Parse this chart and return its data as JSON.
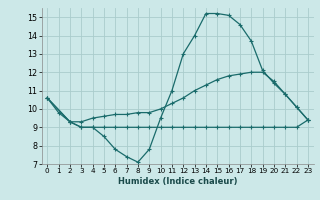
{
  "title": "",
  "xlabel": "Humidex (Indice chaleur)",
  "background_color": "#cce8e8",
  "grid_color": "#aacccc",
  "line_color": "#1a6b6b",
  "xlim": [
    -0.5,
    23.5
  ],
  "ylim": [
    7,
    15.5
  ],
  "xticks": [
    0,
    1,
    2,
    3,
    4,
    5,
    6,
    7,
    8,
    9,
    10,
    11,
    12,
    13,
    14,
    15,
    16,
    17,
    18,
    19,
    20,
    21,
    22,
    23
  ],
  "yticks": [
    7,
    8,
    9,
    10,
    11,
    12,
    13,
    14,
    15
  ],
  "series1_x": [
    0,
    1,
    2,
    3,
    4,
    5,
    6,
    7,
    8,
    9,
    10,
    11,
    12,
    13,
    14,
    15,
    16,
    17,
    18,
    19,
    20,
    21,
    22,
    23
  ],
  "series1_y": [
    10.6,
    9.8,
    9.3,
    9.0,
    9.0,
    8.5,
    7.8,
    7.4,
    7.1,
    7.8,
    9.5,
    11.0,
    13.0,
    14.0,
    15.2,
    15.2,
    15.1,
    14.6,
    13.7,
    12.1,
    11.4,
    10.8,
    10.1,
    9.4
  ],
  "series2_x": [
    0,
    2,
    3,
    4,
    5,
    6,
    7,
    8,
    9,
    10,
    11,
    12,
    13,
    14,
    15,
    16,
    17,
    18,
    19,
    20,
    21,
    22,
    23
  ],
  "series2_y": [
    10.6,
    9.3,
    9.3,
    9.5,
    9.6,
    9.7,
    9.7,
    9.8,
    9.8,
    10.0,
    10.3,
    10.6,
    11.0,
    11.3,
    11.6,
    11.8,
    11.9,
    12.0,
    12.0,
    11.5,
    10.8,
    10.1,
    9.4
  ],
  "series3_x": [
    0,
    2,
    3,
    4,
    5,
    6,
    7,
    8,
    9,
    10,
    11,
    12,
    13,
    14,
    15,
    16,
    17,
    18,
    19,
    20,
    21,
    22,
    23
  ],
  "series3_y": [
    10.6,
    9.3,
    9.0,
    9.0,
    9.0,
    9.0,
    9.0,
    9.0,
    9.0,
    9.0,
    9.0,
    9.0,
    9.0,
    9.0,
    9.0,
    9.0,
    9.0,
    9.0,
    9.0,
    9.0,
    9.0,
    9.0,
    9.4
  ]
}
